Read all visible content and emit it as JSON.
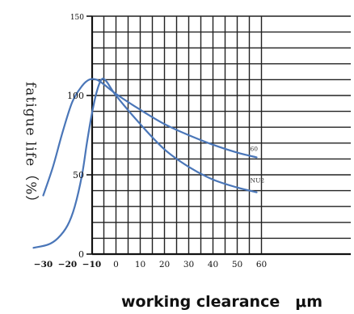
{
  "chart_data": {
    "type": "line",
    "xlabel": "working clearance　μm",
    "ylabel": "fatigue life（%）",
    "xlim": [
      -35,
      60
    ],
    "ylim": [
      0,
      150
    ],
    "x_ticks": [
      "−30",
      "−20",
      "−10",
      "0",
      "10",
      "20",
      "30",
      "40",
      "50",
      "60"
    ],
    "x_tick_values": [
      -30,
      -20,
      -10,
      0,
      10,
      20,
      30,
      40,
      50,
      60
    ],
    "y_ticks": [
      "0",
      "50",
      "100",
      "150"
    ],
    "y_tick_values": [
      0,
      50,
      100,
      150
    ],
    "grid": true,
    "line_color": "#4a76b8",
    "series": [
      {
        "name": "60",
        "x": [
          -30,
          -26,
          -22,
          -18,
          -14,
          -11,
          -8,
          -5,
          0,
          10,
          20,
          30,
          40,
          50,
          58
        ],
        "y": [
          37,
          55,
          77,
          96,
          106,
          110,
          110,
          107,
          101,
          91,
          82,
          75,
          69,
          64,
          61
        ]
      },
      {
        "name": "NU2",
        "x": [
          -34,
          -28,
          -24,
          -20,
          -17,
          -14,
          -12,
          -10,
          -8,
          -6,
          -4,
          0,
          10,
          20,
          30,
          40,
          50,
          58
        ],
        "y": [
          4,
          6,
          10,
          18,
          30,
          50,
          70,
          88,
          102,
          110,
          109,
          100,
          82,
          66,
          55,
          47,
          42,
          39
        ]
      }
    ]
  }
}
